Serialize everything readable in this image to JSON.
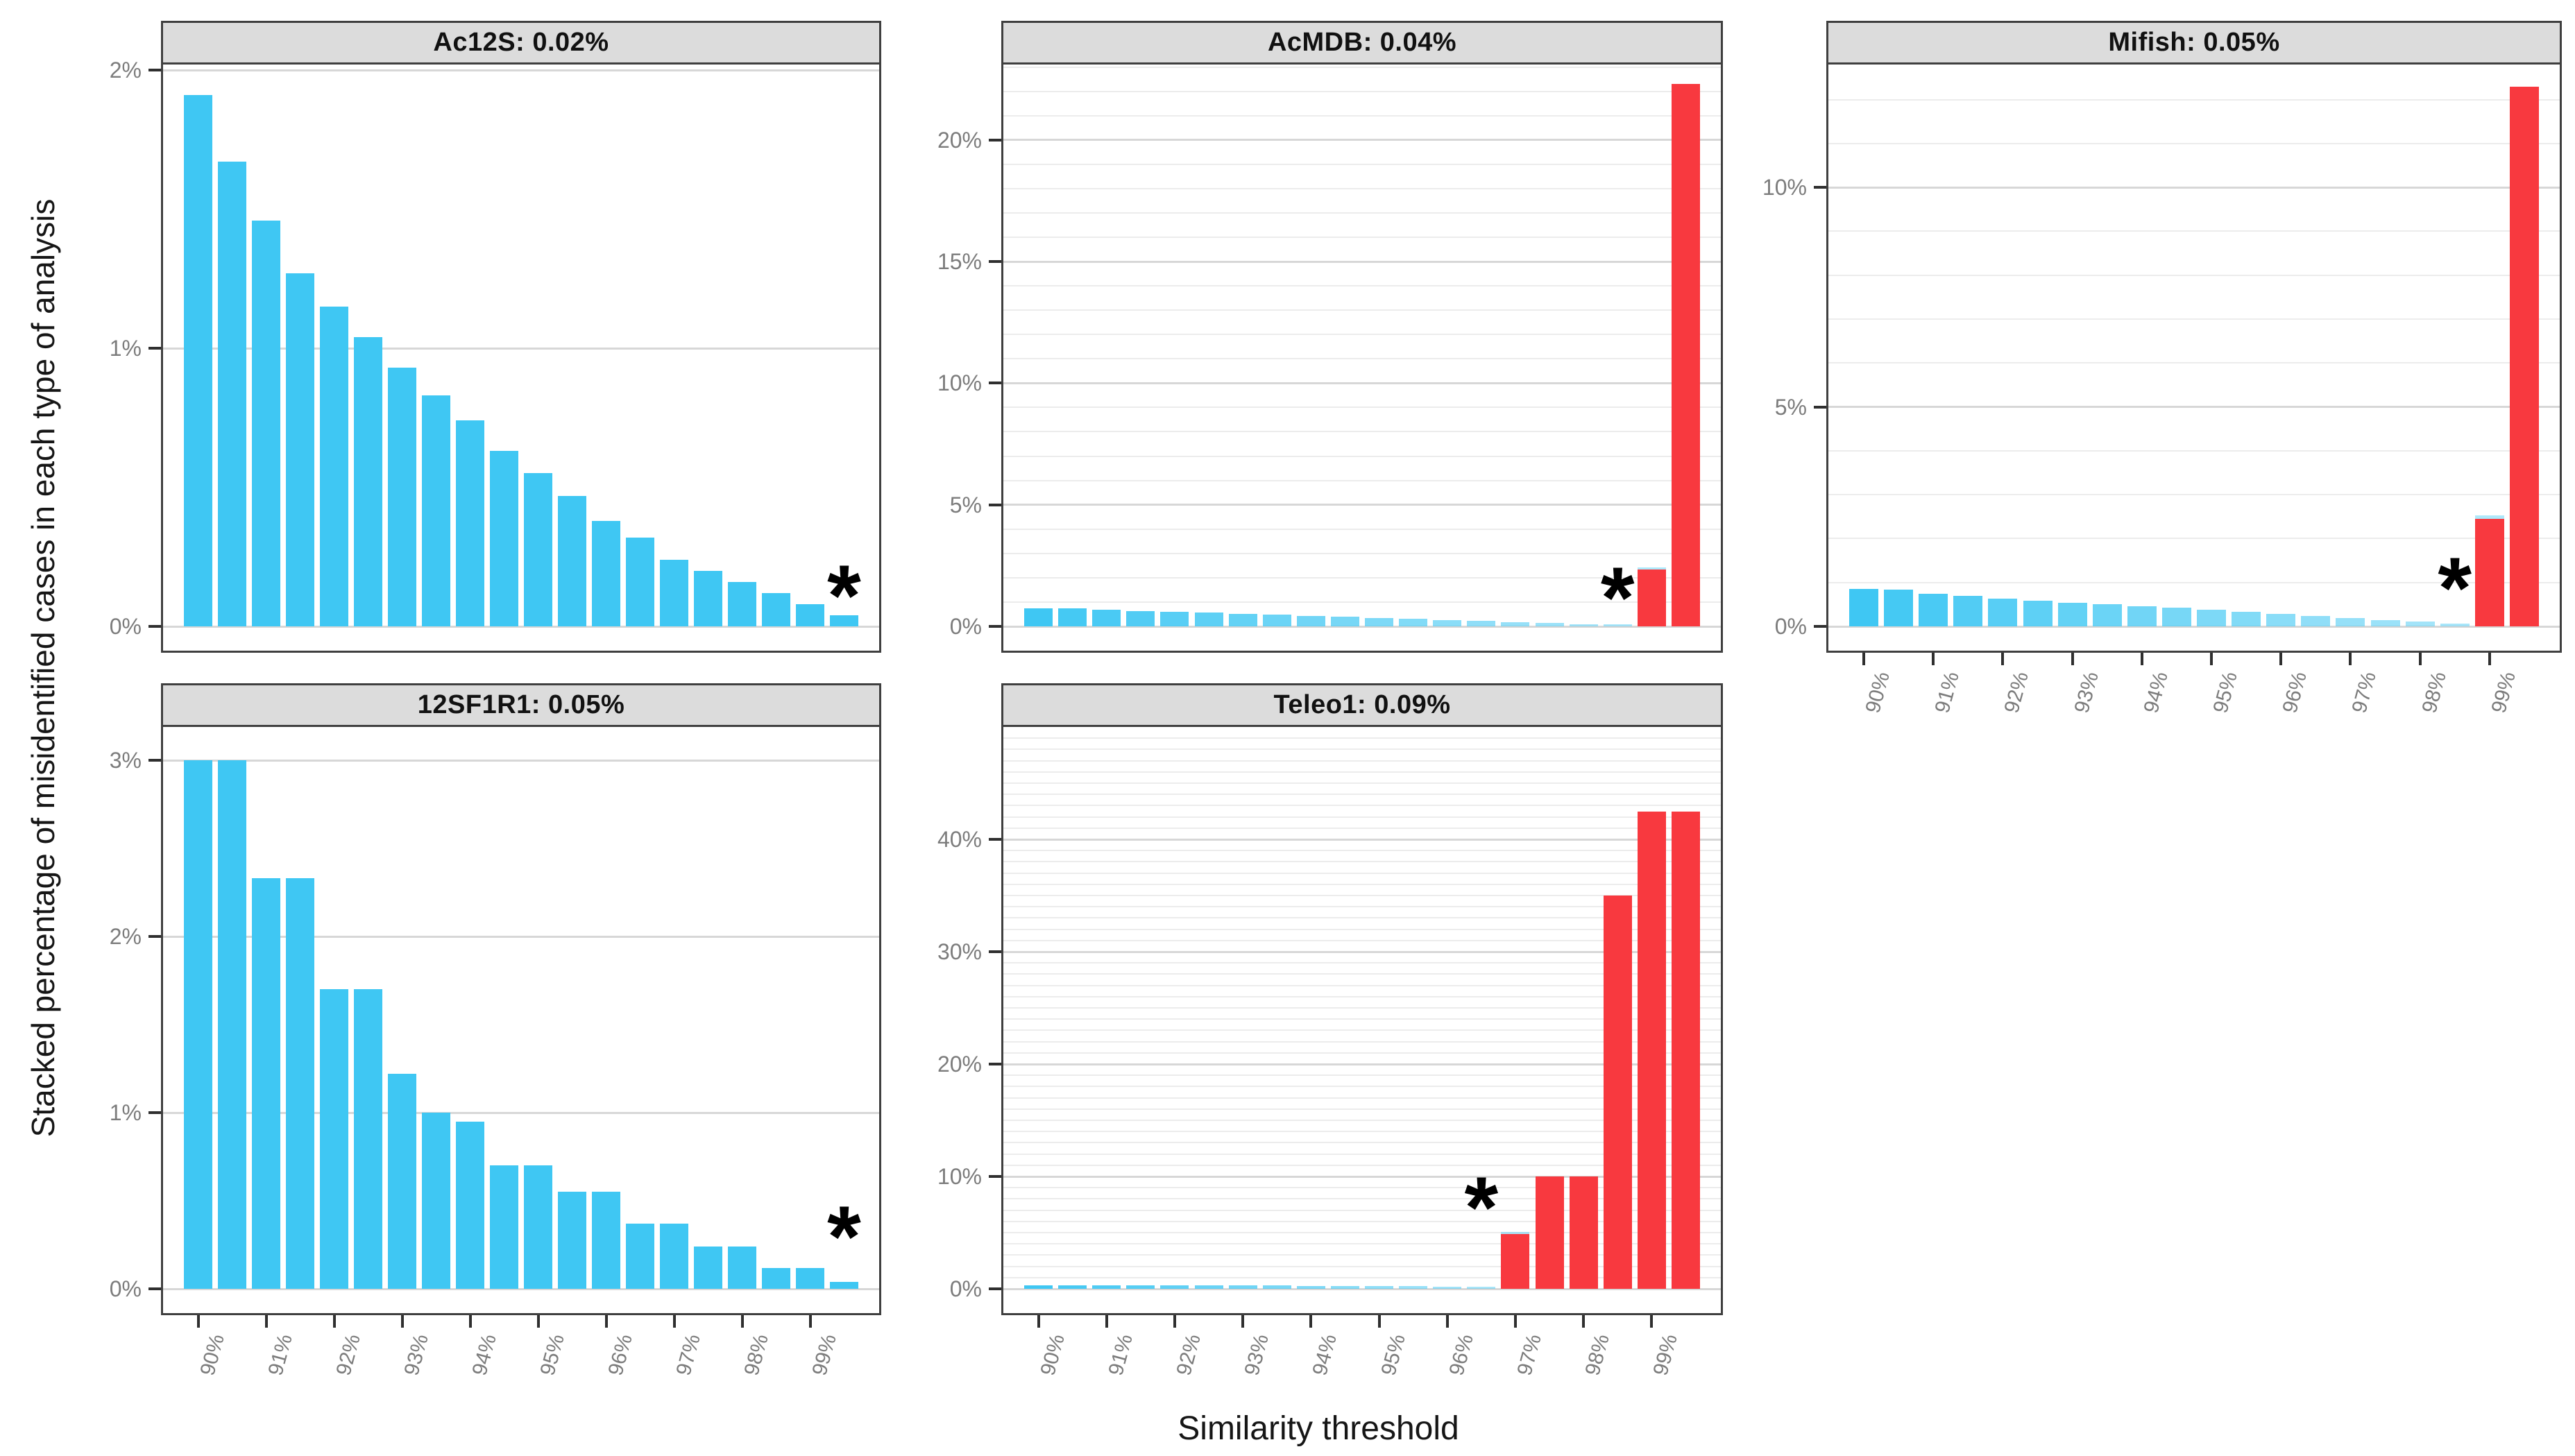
{
  "figure": {
    "y_axis_title": "Stacked percentage of misidentified cases in each type of analysis",
    "x_axis_title": "Similarity threshold",
    "asterisk_symbol": "*",
    "colors": {
      "blue_bar": "#3FC7F3",
      "red_bar": "#F8393F",
      "strip_bg": "#DCDCDC",
      "panel_border": "#3F3F3F",
      "major_gridline": "#D7D7D7",
      "minor_gridline": "#ECECEC",
      "axis_text": "#7C7C7C",
      "tick_mark": "#2F2F2F"
    }
  },
  "chart_data": [
    {
      "type": "bar",
      "title": "Ac12S: 0.02%",
      "x_thresholds": [
        90,
        90.5,
        91,
        91.5,
        92,
        92.5,
        93,
        93.5,
        94,
        94.5,
        95,
        95.5,
        96,
        96.5,
        97,
        97.5,
        98,
        98.5,
        99,
        99.5
      ],
      "x_tick_labels": [
        "90%",
        "91%",
        "92%",
        "93%",
        "94%",
        "95%",
        "96%",
        "97%",
        "98%",
        "99%"
      ],
      "show_x_axis": false,
      "y_ticks": [
        {
          "v": 0,
          "label": "0%"
        },
        {
          "v": 1,
          "label": "1%"
        },
        {
          "v": 2,
          "label": "2%"
        }
      ],
      "y_max": 2.02,
      "minor_grid_step": null,
      "fade": false,
      "blue": [
        1.91,
        1.67,
        1.46,
        1.27,
        1.15,
        1.04,
        0.93,
        0.83,
        0.74,
        0.63,
        0.55,
        0.47,
        0.38,
        0.32,
        0.24,
        0.2,
        0.16,
        0.12,
        0.08,
        0.04
      ],
      "red": [
        0,
        0,
        0,
        0,
        0,
        0,
        0,
        0,
        0,
        0,
        0,
        0,
        0,
        0,
        0,
        0,
        0,
        0,
        0,
        0
      ],
      "asterisk": {
        "index": 19,
        "y": 0.1
      }
    },
    {
      "type": "bar",
      "title": "AcMDB: 0.04%",
      "x_thresholds": [
        90,
        90.5,
        91,
        91.5,
        92,
        92.5,
        93,
        93.5,
        94,
        94.5,
        95,
        95.5,
        96,
        96.5,
        97,
        97.5,
        98,
        98.5,
        99,
        99.5
      ],
      "x_tick_labels": [
        "90%",
        "91%",
        "92%",
        "93%",
        "94%",
        "95%",
        "96%",
        "97%",
        "98%",
        "99%"
      ],
      "show_x_axis": false,
      "y_ticks": [
        {
          "v": 0,
          "label": "0%"
        },
        {
          "v": 5,
          "label": "5%"
        },
        {
          "v": 10,
          "label": "10%"
        },
        {
          "v": 15,
          "label": "15%"
        },
        {
          "v": 20,
          "label": "20%"
        }
      ],
      "y_max": 23.1,
      "minor_grid_step": 1,
      "fade": true,
      "blue": [
        0.75,
        0.73,
        0.68,
        0.64,
        0.6,
        0.56,
        0.52,
        0.48,
        0.44,
        0.4,
        0.35,
        0.3,
        0.26,
        0.22,
        0.18,
        0.14,
        0.1,
        0.06,
        0.05,
        0
      ],
      "red": [
        0,
        0,
        0,
        0,
        0,
        0,
        0,
        0,
        0,
        0,
        0,
        0,
        0,
        0,
        0,
        0,
        0,
        0,
        2.35,
        22.3
      ],
      "asterisk": {
        "index": 17,
        "y": 1.05
      }
    },
    {
      "type": "bar",
      "title": "Mifish: 0.05%",
      "x_thresholds": [
        90,
        90.5,
        91,
        91.5,
        92,
        92.5,
        93,
        93.5,
        94,
        94.5,
        95,
        95.5,
        96,
        96.5,
        97,
        97.5,
        98,
        98.5,
        99,
        99.5
      ],
      "x_tick_labels": [
        "90%",
        "91%",
        "92%",
        "93%",
        "94%",
        "95%",
        "96%",
        "97%",
        "98%",
        "99%"
      ],
      "show_x_axis": true,
      "y_ticks": [
        {
          "v": 0,
          "label": "0%"
        },
        {
          "v": 5,
          "label": "5%"
        },
        {
          "v": 10,
          "label": "10%"
        }
      ],
      "y_max": 12.8,
      "minor_grid_step": 1,
      "fade": true,
      "blue": [
        0.85,
        0.83,
        0.74,
        0.69,
        0.63,
        0.58,
        0.54,
        0.5,
        0.46,
        0.42,
        0.38,
        0.33,
        0.28,
        0.23,
        0.19,
        0.15,
        0.11,
        0.07,
        0.08,
        0
      ],
      "red": [
        0,
        0,
        0,
        0,
        0,
        0,
        0,
        0,
        0,
        0,
        0,
        0,
        0,
        0,
        0,
        0,
        0,
        0,
        2.45,
        12.3
      ],
      "asterisk": {
        "index": 17,
        "y": 0.8
      }
    },
    {
      "type": "bar",
      "title": "12SF1R1: 0.05%",
      "x_thresholds": [
        90,
        90.5,
        91,
        91.5,
        92,
        92.5,
        93,
        93.5,
        94,
        94.5,
        95,
        95.5,
        96,
        96.5,
        97,
        97.5,
        98,
        98.5,
        99,
        99.5
      ],
      "x_tick_labels": [
        "90%",
        "91%",
        "92%",
        "93%",
        "94%",
        "95%",
        "96%",
        "97%",
        "98%",
        "99%"
      ],
      "show_x_axis": true,
      "y_ticks": [
        {
          "v": 0,
          "label": "0%"
        },
        {
          "v": 1,
          "label": "1%"
        },
        {
          "v": 2,
          "label": "2%"
        },
        {
          "v": 3,
          "label": "3%"
        }
      ],
      "y_max": 3.19,
      "minor_grid_step": null,
      "fade": false,
      "blue": [
        3.0,
        3.0,
        2.33,
        2.33,
        1.7,
        1.7,
        1.22,
        1.0,
        0.95,
        0.7,
        0.7,
        0.55,
        0.55,
        0.37,
        0.37,
        0.24,
        0.24,
        0.12,
        0.12,
        0.04
      ],
      "red": [
        0,
        0,
        0,
        0,
        0,
        0,
        0,
        0,
        0,
        0,
        0,
        0,
        0,
        0,
        0,
        0,
        0,
        0,
        0,
        0
      ],
      "asterisk": {
        "index": 19,
        "y": 0.28
      }
    },
    {
      "type": "bar",
      "title": "Teleo1: 0.09%",
      "x_thresholds": [
        90,
        90.5,
        91,
        91.5,
        92,
        92.5,
        93,
        93.5,
        94,
        94.5,
        95,
        95.5,
        96,
        96.5,
        97,
        97.5,
        98,
        98.5,
        99,
        99.5
      ],
      "x_tick_labels": [
        "90%",
        "91%",
        "92%",
        "93%",
        "94%",
        "95%",
        "96%",
        "97%",
        "98%",
        "99%"
      ],
      "show_x_axis": true,
      "y_ticks": [
        {
          "v": 0,
          "label": "0%"
        },
        {
          "v": 10,
          "label": "10%"
        },
        {
          "v": 20,
          "label": "20%"
        },
        {
          "v": 30,
          "label": "30%"
        },
        {
          "v": 40,
          "label": "40%"
        }
      ],
      "y_max": 50,
      "minor_grid_step": 1,
      "fade": true,
      "blue": [
        0.33,
        0.32,
        0.31,
        0.3,
        0.3,
        0.29,
        0.29,
        0.28,
        0.27,
        0.26,
        0.24,
        0.22,
        0.2,
        0.17,
        0.1,
        0,
        0,
        0,
        0,
        0
      ],
      "red": [
        0,
        0,
        0,
        0,
        0,
        0,
        0,
        0,
        0,
        0,
        0,
        0,
        0,
        0,
        4.9,
        10.0,
        10.0,
        35.0,
        42.5,
        42.5
      ],
      "asterisk": {
        "index": 13,
        "y": 7.0
      }
    }
  ]
}
